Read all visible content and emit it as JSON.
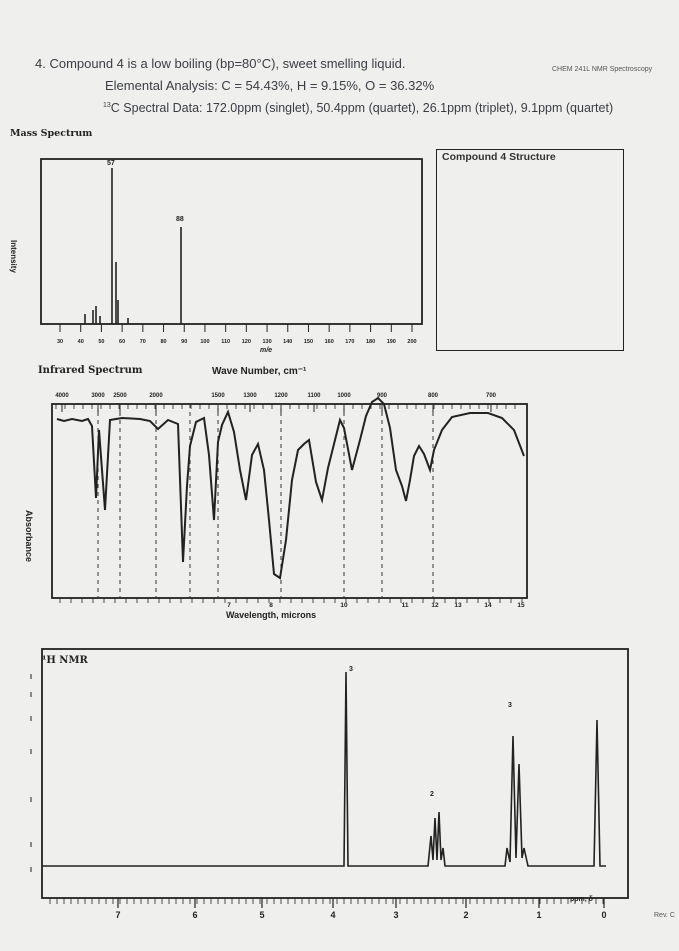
{
  "header": {
    "course": "CHEM 241L NMR Spectroscopy",
    "rev": "Rev. C"
  },
  "question": {
    "line1": "4.  Compound 4 is a low boiling (bp=80°C), sweet smelling liquid.",
    "line2": "Elemental Analysis: C = 54.43%, H = 9.15%, O = 36.32%",
    "line3_sup": "13",
    "line3": "C Spectral Data: 172.0ppm (singlet), 50.4ppm (quartet), 26.1ppm (triplet), 9.1ppm (quartet)"
  },
  "structure_box": {
    "title": "Compound 4 Structure"
  },
  "mass_spectrum": {
    "title": "Mass Spectrum",
    "ylabel": "Intensity",
    "xlabel": "m/e",
    "peak_labels": [
      "57",
      "88"
    ],
    "tick_labels": [
      "30",
      "40",
      "50",
      "60",
      "70",
      "80",
      "90",
      "100",
      "110",
      "120",
      "130",
      "140",
      "150",
      "160",
      "170",
      "180",
      "190",
      "200"
    ]
  },
  "ir_spectrum": {
    "title": "Infrared Spectrum",
    "ylabel": "Absorbance",
    "top_axis_title": "Wave Number, cm⁻¹",
    "bottom_axis_title": "Wavelength, microns",
    "top_ticks": [
      "4000",
      "3000",
      "2500",
      "2000",
      "1500",
      "1300",
      "1200",
      "1100",
      "1000",
      "900",
      "800",
      "700"
    ],
    "bottom_ticks": [
      "7",
      "8",
      "10",
      "11",
      "12",
      "13",
      "14",
      "15"
    ]
  },
  "h_nmr": {
    "title": "¹H NMR",
    "integrations": [
      "3",
      "2",
      "3"
    ],
    "axis_ticks": [
      "7",
      "6",
      "5",
      "4",
      "3",
      "2",
      "1",
      "0"
    ],
    "axis_unit": "ppm, δ"
  }
}
